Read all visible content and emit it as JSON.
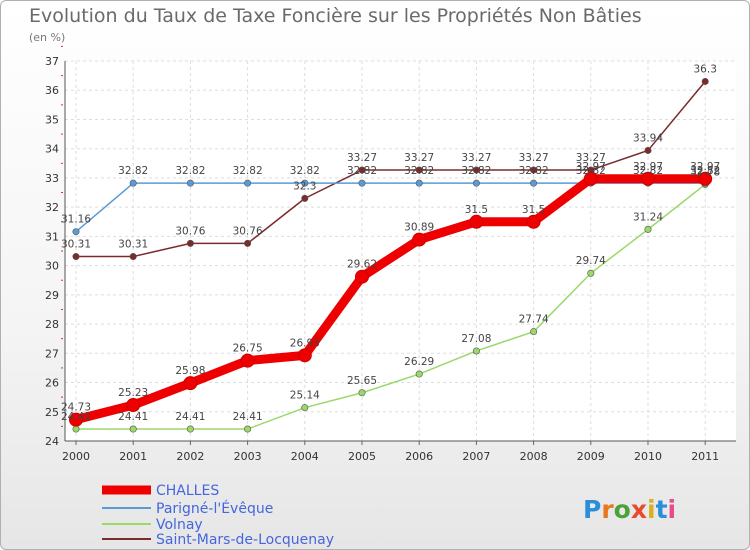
{
  "chart_data": {
    "type": "line",
    "title": "Evolution du Taux de Taxe Foncière sur les Propriétés Non Bâties",
    "ylabel": "(en %)",
    "xlabel": "",
    "categories": [
      "2000",
      "2001",
      "2002",
      "2003",
      "2004",
      "2005",
      "2006",
      "2007",
      "2008",
      "2009",
      "2010",
      "2011"
    ],
    "ylim": [
      24,
      37
    ],
    "yticks": [
      "24",
      "25",
      "26",
      "27",
      "28",
      "29",
      "30",
      "31",
      "32",
      "33",
      "34",
      "35",
      "36",
      "37"
    ],
    "series": [
      {
        "name": "CHALLES",
        "color": "#ee0000",
        "values": [
          24.73,
          25.23,
          25.98,
          26.75,
          26.93,
          29.62,
          30.89,
          31.5,
          31.5,
          32.97,
          32.97,
          32.97
        ],
        "labels": [
          "24.73",
          "25.23",
          "25.98",
          "26.75",
          "26.93",
          "29.62",
          "30.89",
          "31.5",
          "31.5",
          "32.97",
          "32.97",
          "32.97"
        ]
      },
      {
        "name": "Parigné-l'Évêque",
        "color": "#5b9bd5",
        "values": [
          31.16,
          32.82,
          32.82,
          32.82,
          32.82,
          32.82,
          32.82,
          32.82,
          32.82,
          32.82,
          32.82,
          32.82
        ],
        "labels": [
          "31.16",
          "32.82",
          "32.82",
          "32.82",
          "32.82",
          "32.82",
          "32.82",
          "32.82",
          "32.82",
          "32.82",
          "32.82",
          "32.82"
        ]
      },
      {
        "name": "Volnay",
        "color": "#9ad86a",
        "values": [
          24.41,
          24.41,
          24.41,
          24.41,
          25.14,
          25.65,
          26.29,
          27.08,
          27.74,
          29.74,
          31.24,
          32.78
        ],
        "labels": [
          "24.41",
          "24.41",
          "24.41",
          "24.41",
          "25.14",
          "25.65",
          "26.29",
          "27.08",
          "27.74",
          "29.74",
          "31.24",
          "32.78"
        ]
      },
      {
        "name": "Saint-Mars-de-Locquenay",
        "color": "#7a2b2b",
        "values": [
          30.31,
          30.31,
          30.76,
          30.76,
          32.3,
          33.27,
          33.27,
          33.27,
          33.27,
          33.27,
          33.94,
          36.3
        ],
        "labels": [
          "30.31",
          "30.31",
          "30.76",
          "30.76",
          "32.3",
          "33.27",
          "33.27",
          "33.27",
          "33.27",
          "33.27",
          "33.94",
          "36.3"
        ]
      }
    ],
    "legend": "bottom-left",
    "grid": true
  },
  "logo": {
    "text": "Proxiti"
  }
}
